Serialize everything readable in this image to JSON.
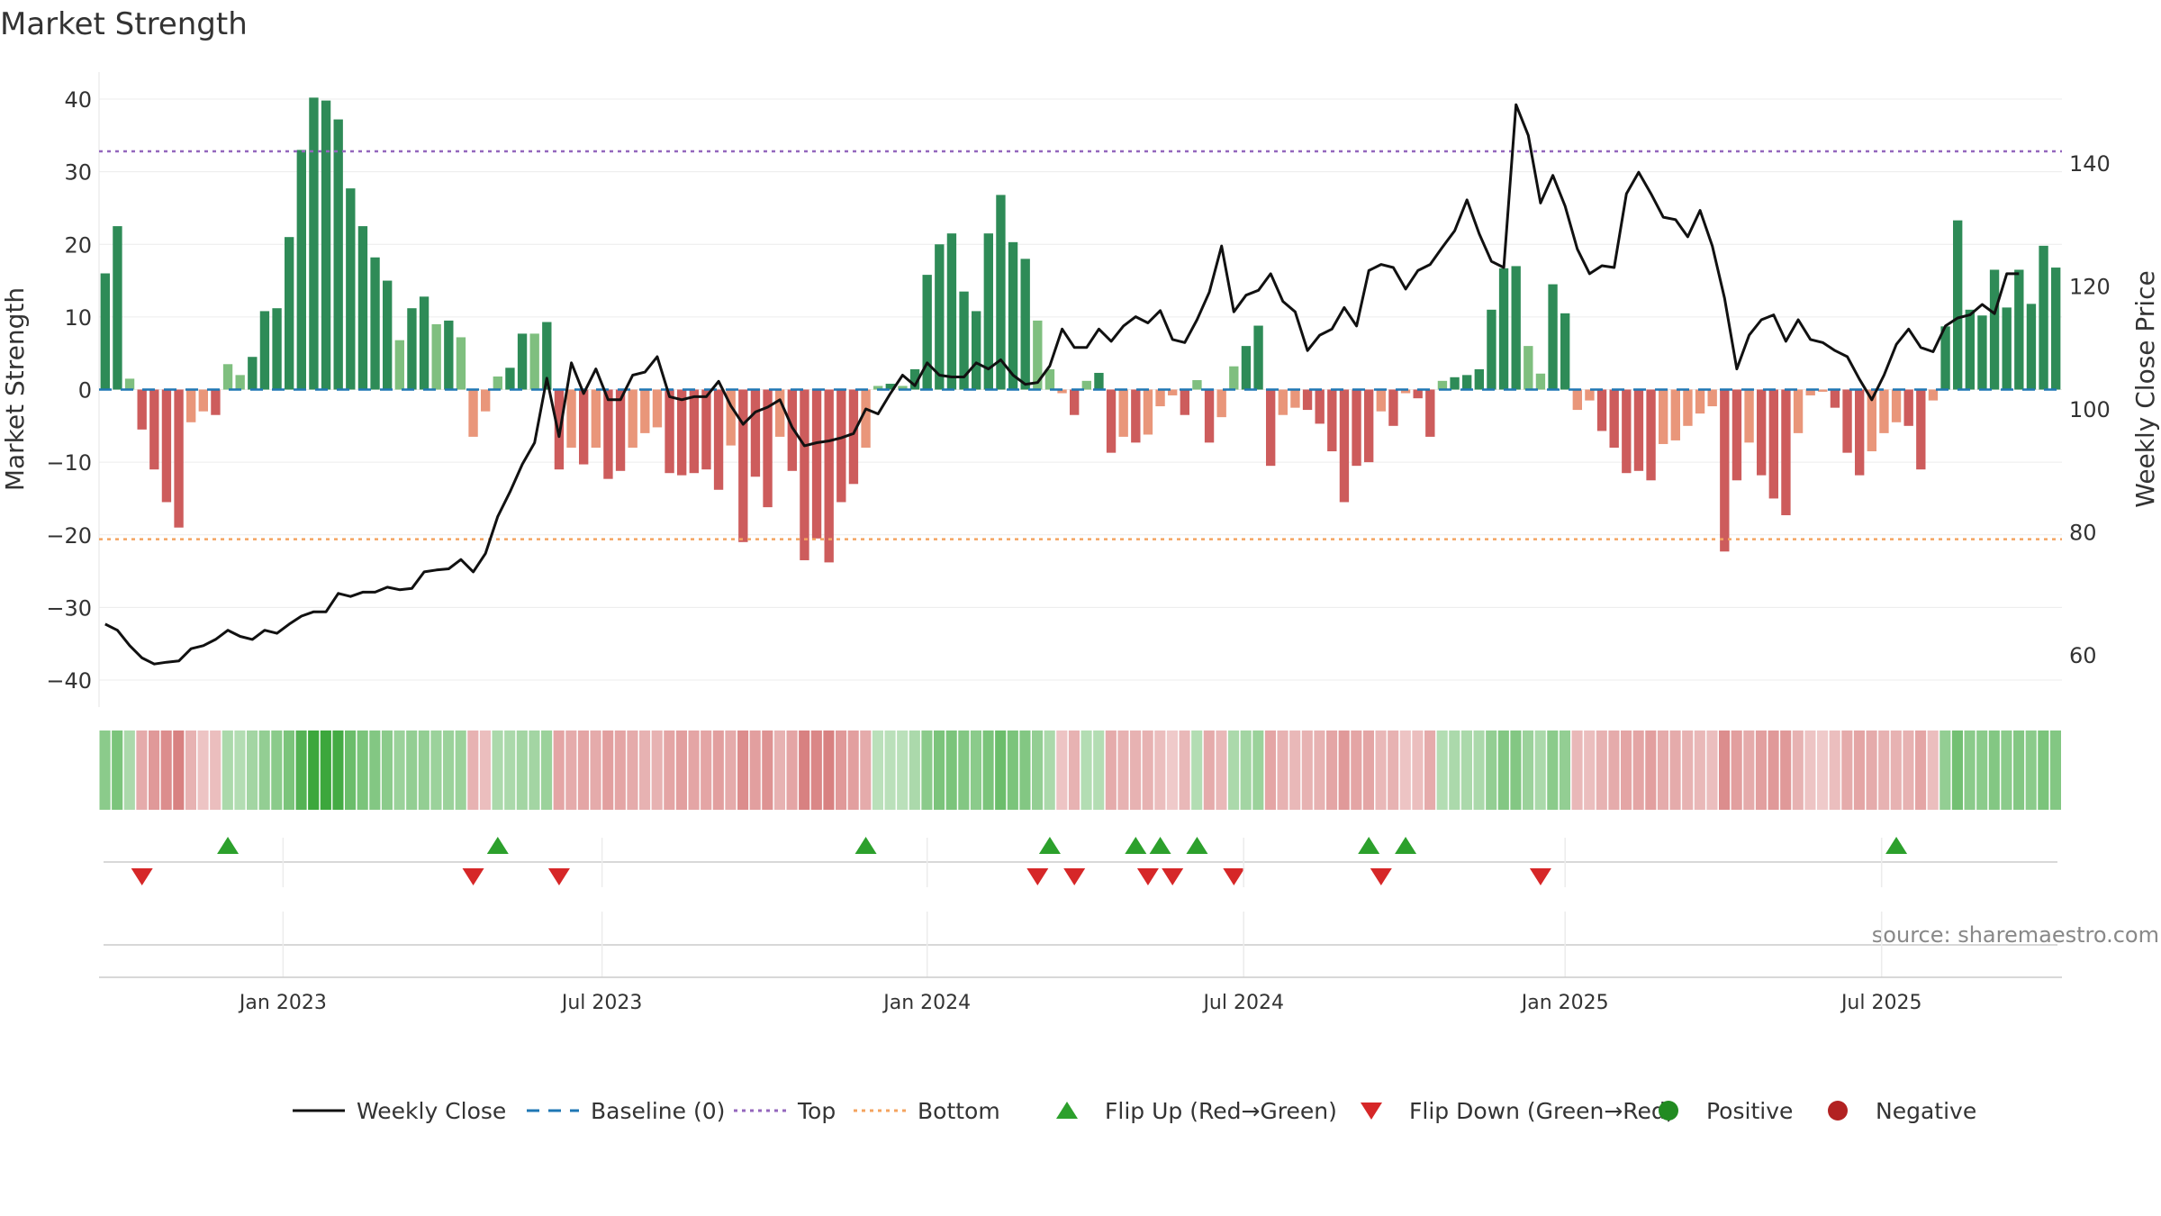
{
  "chart_data": {
    "type": "bar",
    "title": "Market Strength",
    "ylabel": "Market Strength",
    "ylabel_right": "Weekly Close Price",
    "ylim": [
      -44,
      44
    ],
    "ylim_right": [
      52,
      155
    ],
    "yticks": [
      40,
      30,
      20,
      10,
      0,
      -10,
      -20,
      -30,
      -40
    ],
    "yticks_right": [
      140,
      120,
      100,
      80,
      60
    ],
    "yticks_labels": [
      "40",
      "30",
      "20",
      "10",
      "0",
      "−10",
      "−20",
      "−30",
      "−40"
    ],
    "yticks_right_labels": [
      "140",
      "120",
      "100",
      "80",
      "60"
    ],
    "xticks": [
      "Jan 2023",
      "Jul 2023",
      "Jan 2024",
      "Jul 2024",
      "Jan 2025",
      "Jul 2025"
    ],
    "top_line": 32.8,
    "bottom_line": -20.6,
    "grid": true,
    "legend_position": "bottom",
    "source_text": "source: sharemaestro.com",
    "colors": {
      "strong_green": "#2e8b57",
      "light_green": "#7fbf7f",
      "strong_red": "#cd5c5c",
      "light_red": "#e9967a",
      "price_line": "#111111",
      "baseline": "#1f77b4",
      "top": "#9467bd",
      "bottom": "#f4a460",
      "flip_up": "#2ca02c",
      "flip_down": "#d62728",
      "positive": "#228b22",
      "negative": "#b22222"
    },
    "strength": [
      16,
      22.5,
      1.5,
      -5.5,
      -11,
      -15.5,
      -19,
      -4.5,
      -3,
      -3.5,
      3.5,
      2,
      4.5,
      10.8,
      11.2,
      21,
      33,
      40.2,
      39.8,
      37.2,
      27.7,
      22.5,
      18.2,
      15,
      6.8,
      11.2,
      12.8,
      9,
      9.5,
      7.2,
      -6.5,
      -3,
      1.8,
      3,
      7.7,
      7.7,
      9.3,
      -11,
      -8,
      -10.3,
      -8,
      -12.3,
      -11.2,
      -8,
      -6,
      -5.2,
      -11.5,
      -11.8,
      -11.5,
      -11,
      -13.8,
      -7.7,
      -21,
      -12,
      -16.2,
      -6.5,
      -11.2,
      -23.5,
      -20.5,
      -23.8,
      -15.5,
      -13,
      -8,
      0.5,
      0.8,
      0.5,
      2.8,
      15.8,
      20,
      21.5,
      13.5,
      10.8,
      21.5,
      26.8,
      20.3,
      18,
      9.5,
      2.8,
      -0.5,
      -3.5,
      1.2,
      2.3,
      -8.7,
      -6.5,
      -7.3,
      -6.2,
      -2.3,
      -0.8,
      -3.5,
      1.3,
      -7.3,
      -3.8,
      3.2,
      6,
      8.8,
      -10.5,
      -3.5,
      -2.5,
      -2.8,
      -4.7,
      -8.5,
      -15.5,
      -10.5,
      -10,
      -3,
      -5,
      -0.5,
      -1.2,
      -6.5,
      1.2,
      1.7,
      2,
      2.8,
      11,
      16.7,
      17,
      6,
      2.2,
      14.5,
      10.5,
      -2.8,
      -1.5,
      -5.7,
      -8,
      -11.5,
      -11.2,
      -12.5,
      -7.5,
      -7,
      -5,
      -3.3,
      -2.3,
      -22.3,
      -12.5,
      -7.3,
      -11.8,
      -15,
      -17.3,
      -6,
      -0.8,
      -0.3,
      -2.5,
      -8.7,
      -11.8,
      -8.5,
      -6,
      -4.5,
      -5,
      -11,
      -1.5,
      8.7,
      23.3,
      11,
      10.2,
      16.5,
      11.3,
      16.5,
      11.8,
      19.8,
      16.8
    ],
    "price": [
      65,
      64,
      61.5,
      59.5,
      58.5,
      58.8,
      59,
      61,
      61.5,
      62.5,
      64,
      63,
      62.5,
      64,
      63.5,
      65,
      66.3,
      67,
      67,
      70,
      69.5,
      70.2,
      70.2,
      71,
      70.6,
      70.8,
      73.5,
      73.8,
      74,
      75.5,
      73.5,
      76.5,
      82.5,
      86.5,
      91,
      94.5,
      105,
      95.5,
      107.5,
      102.5,
      106.5,
      101.5,
      101.5,
      105.5,
      106,
      108.5,
      102,
      101.5,
      102,
      102,
      104.5,
      100.5,
      97.5,
      99.5,
      100.3,
      101.5,
      97,
      94,
      94.5,
      94.8,
      95.3,
      96,
      100,
      99.2,
      102.5,
      105.5,
      103.8,
      107.5,
      105.5,
      105.2,
      105.2,
      107.5,
      106.5,
      108,
      105.5,
      104,
      104.3,
      107,
      113,
      110,
      110,
      113,
      111,
      113.5,
      115,
      114,
      116,
      111.3,
      110.8,
      114.5,
      119,
      126.5,
      115.8,
      118.5,
      119.3,
      122,
      117.5,
      115.8,
      109.5,
      112,
      113,
      116.5,
      113.5,
      122.5,
      123.5,
      123,
      119.5,
      122.5,
      123.5,
      126.3,
      129,
      134,
      128.5,
      124,
      123,
      149.5,
      144.5,
      133.5,
      138,
      133,
      126,
      122,
      123.3,
      123,
      135,
      138.5,
      135,
      131.2,
      130.8,
      128,
      132.3,
      126.5,
      118,
      106.5,
      112,
      114.5,
      115.3,
      111,
      114.5,
      111.3,
      110.8,
      109.5,
      108.5,
      104.8,
      101.5,
      105.5,
      110.5,
      113,
      110,
      109.3,
      113.5,
      114.8,
      115.3,
      117,
      115.5,
      122,
      122
    ],
    "color_strip": {
      "description_of_levels": "-1..1 strength tint",
      "levels": [
        0.4,
        0.5,
        0.2,
        -0.35,
        -0.5,
        -0.6,
        -0.7,
        -0.3,
        -0.15,
        -0.2,
        0.2,
        0.15,
        0.25,
        0.35,
        0.4,
        0.5,
        0.75,
        0.9,
        0.9,
        0.85,
        0.6,
        0.5,
        0.45,
        0.4,
        0.3,
        0.35,
        0.35,
        0.3,
        0.3,
        0.3,
        -0.3,
        -0.2,
        0.2,
        0.2,
        0.25,
        0.25,
        0.3,
        -0.4,
        -0.35,
        -0.4,
        -0.35,
        -0.45,
        -0.4,
        -0.35,
        -0.3,
        -0.3,
        -0.4,
        -0.45,
        -0.4,
        -0.4,
        -0.45,
        -0.35,
        -0.6,
        -0.45,
        -0.55,
        -0.3,
        -0.4,
        -0.7,
        -0.65,
        -0.7,
        -0.5,
        -0.45,
        -0.35,
        0.1,
        0.1,
        0.1,
        0.2,
        0.4,
        0.5,
        0.5,
        0.45,
        0.4,
        0.5,
        0.6,
        0.5,
        0.45,
        0.35,
        0.2,
        -0.15,
        -0.3,
        0.15,
        0.15,
        -0.35,
        -0.3,
        -0.3,
        -0.3,
        -0.2,
        -0.1,
        -0.25,
        0.15,
        -0.35,
        -0.25,
        0.2,
        0.25,
        0.3,
        -0.4,
        -0.3,
        -0.25,
        -0.3,
        -0.3,
        -0.4,
        -0.5,
        -0.4,
        -0.4,
        -0.25,
        -0.3,
        -0.15,
        -0.2,
        -0.35,
        0.15,
        0.2,
        0.2,
        0.2,
        0.35,
        0.45,
        0.45,
        0.3,
        0.2,
        0.4,
        0.35,
        -0.25,
        -0.2,
        -0.3,
        -0.35,
        -0.4,
        -0.4,
        -0.45,
        -0.35,
        -0.35,
        -0.3,
        -0.25,
        -0.2,
        -0.6,
        -0.45,
        -0.35,
        -0.45,
        -0.5,
        -0.5,
        -0.3,
        -0.15,
        -0.1,
        -0.2,
        -0.35,
        -0.4,
        -0.35,
        -0.3,
        -0.3,
        -0.3,
        -0.4,
        -0.2,
        0.35,
        0.55,
        0.4,
        0.4,
        0.45,
        0.4,
        0.45,
        0.4,
        0.5,
        0.45
      ]
    },
    "flip_up_weeks": [
      10,
      32,
      62,
      77,
      84,
      86,
      89,
      103,
      106,
      146
    ],
    "flip_down_weeks": [
      3,
      30,
      37,
      76,
      79,
      85,
      87,
      92,
      104,
      117
    ]
  },
  "legend": [
    {
      "key": "line",
      "label": "Weekly Close",
      "color": "#111111",
      "style": "solid"
    },
    {
      "key": "line",
      "label": "Baseline (0)",
      "color": "#1f77b4",
      "style": "dashed"
    },
    {
      "key": "line",
      "label": "Top",
      "color": "#9467bd",
      "style": "dotted"
    },
    {
      "key": "line",
      "label": "Bottom",
      "color": "#f4a460",
      "style": "dotted"
    },
    {
      "key": "tri-up",
      "label": "Flip Up (Red→Green)",
      "color": "#2ca02c"
    },
    {
      "key": "tri-down",
      "label": "Flip Down (Green→Red)",
      "color": "#d62728"
    },
    {
      "key": "dot",
      "label": "Positive",
      "color": "#228b22"
    },
    {
      "key": "dot",
      "label": "Negative",
      "color": "#b22222"
    }
  ]
}
